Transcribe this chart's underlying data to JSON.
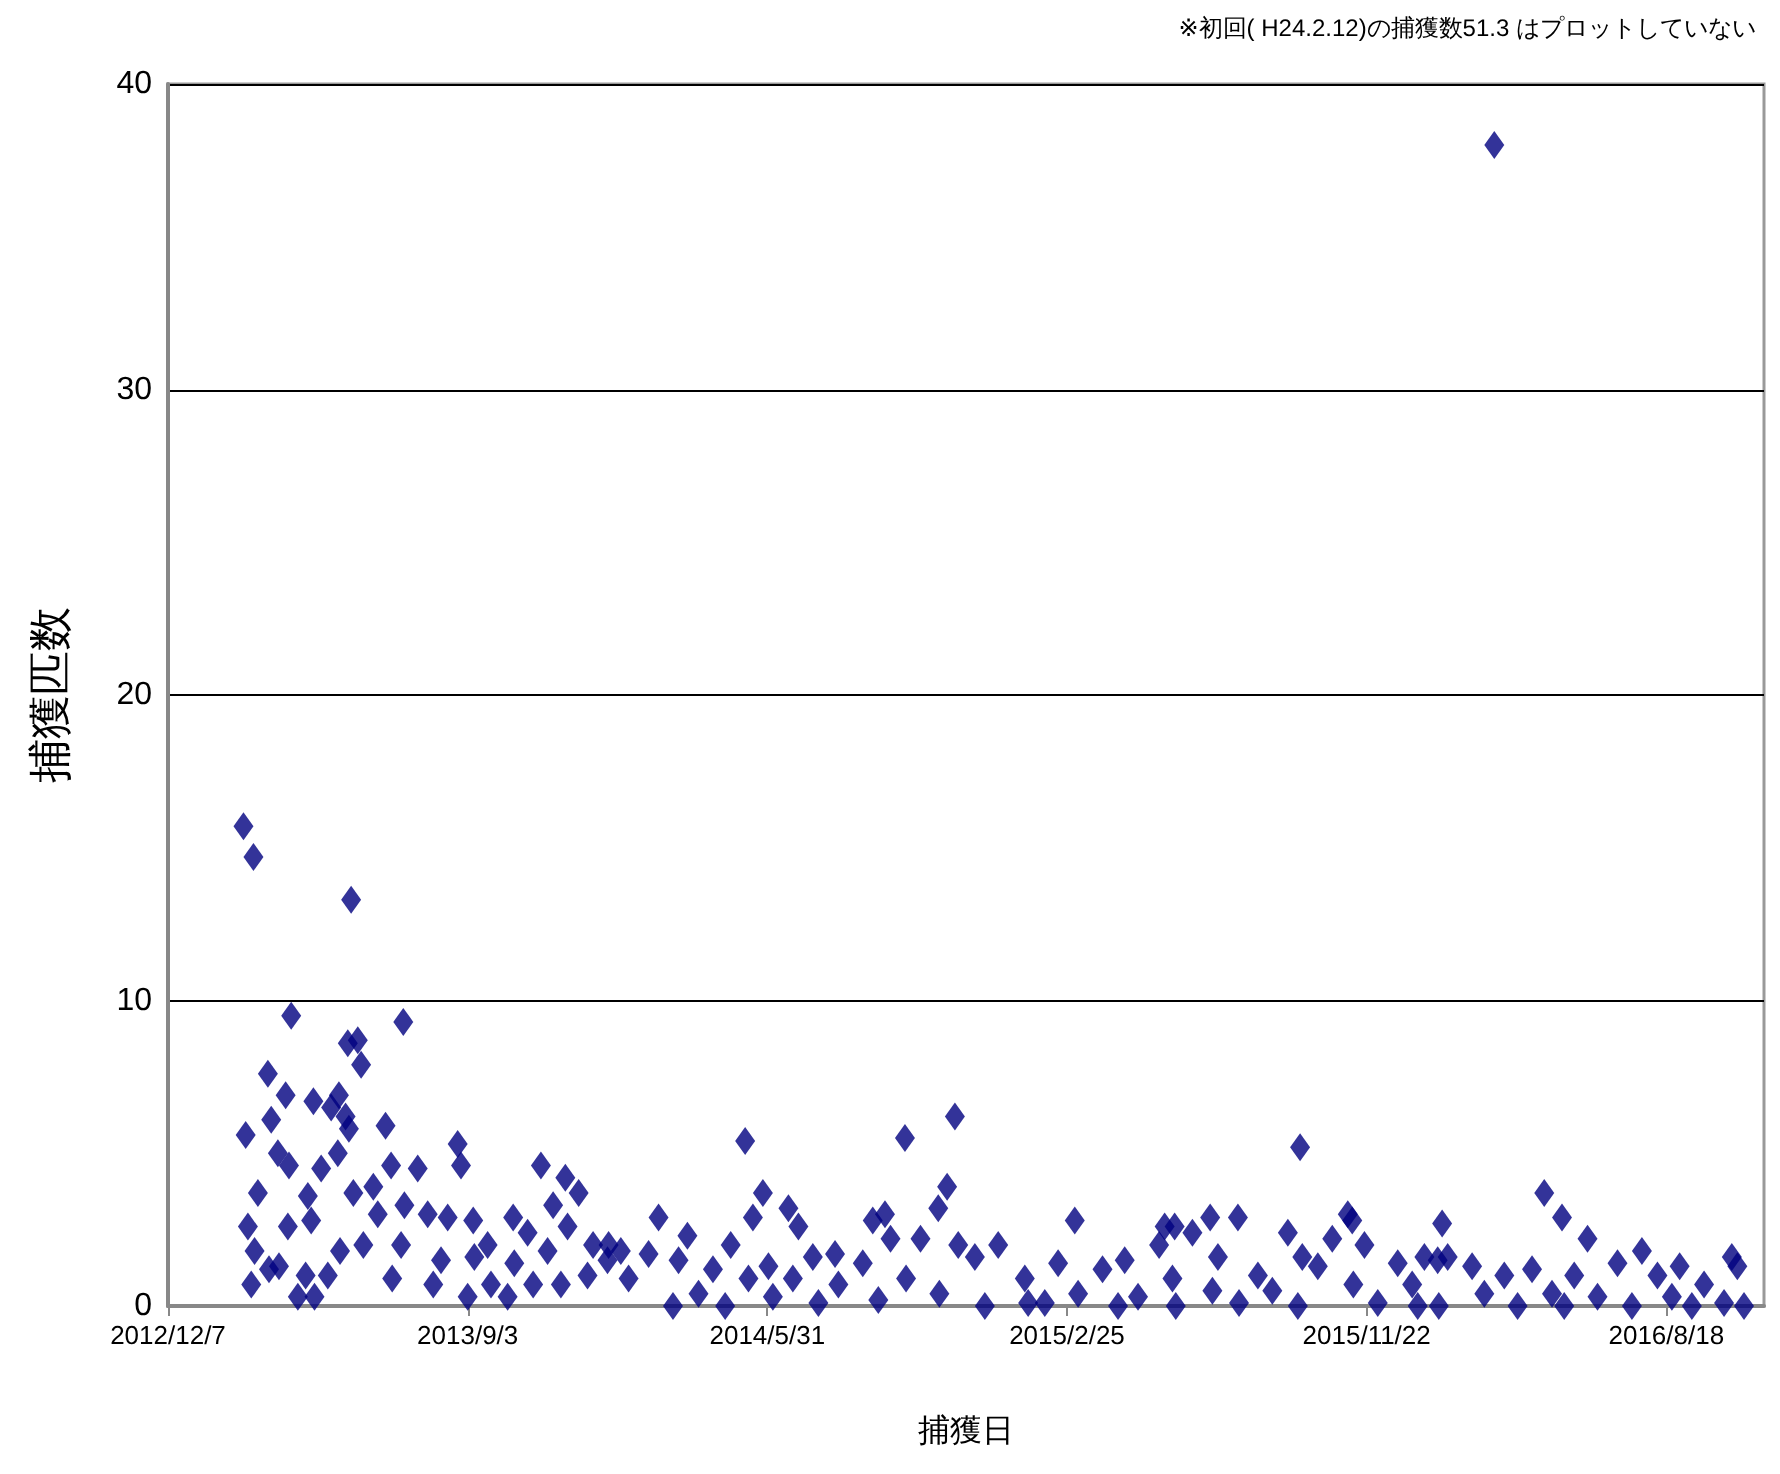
{
  "chart_data": {
    "type": "scatter",
    "xlabel": "捕獲日",
    "ylabel": "捕獲匹数",
    "annotations": [
      "※初回( H24.2.12)の捕獲数51.3 はプロットしていない"
    ],
    "xlim": [
      "2012-12-07",
      "2016-11-14"
    ],
    "xticks": [
      {
        "value": "2012-12-07",
        "label": "2012/12/7"
      },
      {
        "value": "2013-09-03",
        "label": "2013/9/3"
      },
      {
        "value": "2014-05-31",
        "label": "2014/5/31"
      },
      {
        "value": "2015-02-25",
        "label": "2015/2/25"
      },
      {
        "value": "2015-11-22",
        "label": "2015/11/22"
      },
      {
        "value": "2016-08-18",
        "label": "2016/8/18"
      }
    ],
    "ylim": [
      0,
      40
    ],
    "yticks": [
      0,
      10,
      20,
      30,
      40
    ],
    "grid": "y",
    "marker": "diamond",
    "color": "#000080",
    "x": [
      "2013-02-13",
      "2013-02-22",
      "2013-05-21",
      "2013-03-28",
      "2013-07-07",
      "2013-05-18",
      "2013-05-27",
      "2013-05-30",
      "2013-03-07",
      "2013-03-23",
      "2013-04-17",
      "2013-05-03",
      "2013-05-10",
      "2013-05-16",
      "2013-03-10",
      "2013-02-15",
      "2013-06-21",
      "2013-05-19",
      "2013-05-09",
      "2013-03-16",
      "2013-08-25",
      "2013-08-28",
      "2013-04-24",
      "2013-03-26",
      "2013-06-26",
      "2013-11-08",
      "2013-07-20",
      "2013-11-30",
      "2013-12-12",
      "2013-11-19",
      "2013-02-26",
      "2013-04-12",
      "2013-05-23",
      "2013-06-10",
      "2013-07-08",
      "2013-02-17",
      "2013-03-25",
      "2013-04-15",
      "2013-06-14",
      "2013-07-29",
      "2013-08-16",
      "2013-09-08",
      "2013-10-14",
      "2013-12-02",
      "2013-06-01",
      "2013-05-11",
      "2013-02-23",
      "2013-07-05",
      "2013-09-21",
      "2013-10-27",
      "2013-11-14",
      "2013-12-25",
      "2014-01-19",
      "2013-02-20",
      "2013-03-17",
      "2013-04-10",
      "2013-04-30",
      "2013-04-03",
      "2013-04-18",
      "2013-06-27",
      "2013-08-03",
      "2013-09-03",
      "2013-09-24",
      "2013-10-09",
      "2013-11-01",
      "2013-11-26",
      "2013-12-20",
      "2014-01-07",
      "2013-03-08",
      "2013-08-10",
      "2013-09-09",
      "2013-10-15",
      "2014-05-11",
      "2014-10-02",
      "2014-11-16",
      "2014-11-09",
      "2014-11-01",
      "2014-05-27",
      "2014-05-18",
      "2014-06-19",
      "2014-06-28",
      "2014-02-22",
      "2014-03-20",
      "2014-09-03",
      "2014-09-14",
      "2014-09-19",
      "2014-10-16",
      "2014-04-28",
      "2014-12-25",
      "2014-11-19",
      "2014-01-08",
      "2014-02-13",
      "2014-07-11",
      "2014-07-31",
      "2014-08-25",
      "2014-12-04",
      "2014-03-12",
      "2014-06-01",
      "2014-04-12",
      "2014-01-26",
      "2014-05-14",
      "2014-06-23",
      "2014-10-03",
      "2015-01-18",
      "2014-03-07",
      "2014-04-23",
      "2014-07-16",
      "2014-09-08",
      "2014-12-13",
      "2015-01-21",
      "2014-03-30",
      "2014-06-05",
      "2014-11-02",
      "2014-08-03",
      "2015-03-04",
      "2015-09-23",
      "2015-07-04",
      "2015-07-29",
      "2015-06-18",
      "2015-05-24",
      "2015-06-02",
      "2015-09-12",
      "2015-11-05",
      "2015-11-09",
      "2015-04-18",
      "2015-10-22",
      "2015-11-20",
      "2015-02-17",
      "2015-03-29",
      "2015-05-19",
      "2015-07-11",
      "2015-09-25",
      "2015-12-20",
      "2016-01-25",
      "2015-08-16",
      "2015-10-09",
      "2015-05-31",
      "2015-07-06",
      "2015-08-29",
      "2015-11-10",
      "2015-02-05",
      "2015-04-12",
      "2015-06-03",
      "2015-07-30",
      "2015-09-21",
      "2015-12-02",
      "2016-01-07",
      "2015-03-07",
      "2015-04-30",
      "2016-04-30",
      "2016-05-16",
      "2016-06-08",
      "2016-01-29",
      "2016-02-03",
      "2016-01-13",
      "2016-02-25",
      "2016-07-27",
      "2016-08-30",
      "2016-10-16",
      "2016-10-21",
      "2016-03-25",
      "2016-04-19",
      "2016-05-27",
      "2016-07-05",
      "2016-08-10",
      "2016-09-21",
      "2016-01-02",
      "2016-03-07",
      "2016-05-07",
      "2016-06-17",
      "2016-08-23",
      "2016-01-26",
      "2016-04-06",
      "2016-05-18",
      "2016-07-18",
      "2016-09-10",
      "2016-10-27",
      "2016-10-09",
      "2016-03-16"
    ],
    "values": [
      15.7,
      14.7,
      13.3,
      9.5,
      9.3,
      8.6,
      8.7,
      7.9,
      7.6,
      6.9,
      6.7,
      6.5,
      6.9,
      6.2,
      6.1,
      5.6,
      5.9,
      5.8,
      5.0,
      5.0,
      5.3,
      4.6,
      4.5,
      4.6,
      4.6,
      4.6,
      4.5,
      4.2,
      3.7,
      3.3,
      3.7,
      3.6,
      3.7,
      3.9,
      3.3,
      2.6,
      2.6,
      2.8,
      3.0,
      3.0,
      2.9,
      2.8,
      2.9,
      2.6,
      2.0,
      1.8,
      1.8,
      2.0,
      2.0,
      2.4,
      1.8,
      2.0,
      1.8,
      0.7,
      1.3,
      1.0,
      1.0,
      0.3,
      0.3,
      0.9,
      0.7,
      0.3,
      0.7,
      0.3,
      0.7,
      0.7,
      1.0,
      1.5,
      1.2,
      1.5,
      1.6,
      1.4,
      5.4,
      5.5,
      6.2,
      3.9,
      3.2,
      3.7,
      2.9,
      3.2,
      2.6,
      2.9,
      2.3,
      2.8,
      3.0,
      2.2,
      2.2,
      2.0,
      2.0,
      2.0,
      2.0,
      1.7,
      1.6,
      1.7,
      1.4,
      1.6,
      1.5,
      1.3,
      1.2,
      0.9,
      0.9,
      0.9,
      0.9,
      0.9,
      0.0,
      0.0,
      0.1,
      0.2,
      0.0,
      0.1,
      0.4,
      0.3,
      0.4,
      0.7,
      2.8,
      5.2,
      2.9,
      2.9,
      2.4,
      2.6,
      2.6,
      2.4,
      3.0,
      2.8,
      1.5,
      2.2,
      2.0,
      1.4,
      1.2,
      2.0,
      1.6,
      1.6,
      1.4,
      1.5,
      1.0,
      1.3,
      0.9,
      0.5,
      0.5,
      0.7,
      0.1,
      0.0,
      0.0,
      0.1,
      0.0,
      0.1,
      0.0,
      0.4,
      0.3,
      3.7,
      2.9,
      2.2,
      2.7,
      1.6,
      1.6,
      1.3,
      1.8,
      1.3,
      1.6,
      1.3,
      1.0,
      1.2,
      1.0,
      1.4,
      1.0,
      0.7,
      0.7,
      0.4,
      0.4,
      0.3,
      0.3,
      0.0,
      0.0,
      0.0,
      0.0,
      0.0,
      0.0,
      0.1,
      38.0
    ]
  }
}
